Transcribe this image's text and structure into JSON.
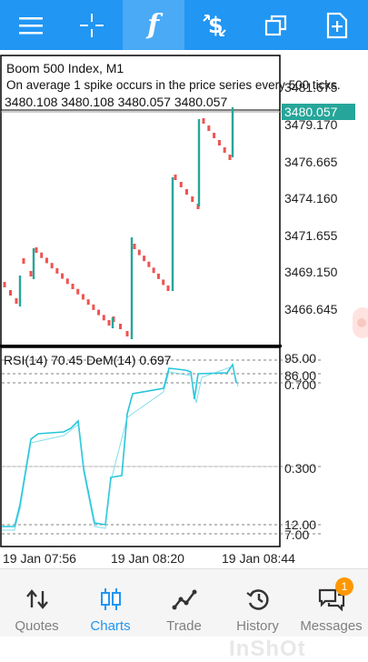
{
  "toolbar": {
    "buttons": [
      {
        "name": "menu-icon"
      },
      {
        "name": "crosshair-icon"
      },
      {
        "name": "indicators-icon",
        "glyph": "f",
        "active": true
      },
      {
        "name": "trade-dollar-icon"
      },
      {
        "name": "windows-icon"
      },
      {
        "name": "new-order-icon"
      }
    ],
    "bg_color": "#2196f3",
    "active_color": "#4aaaf5"
  },
  "chart": {
    "title": "Boom 500 Index, M1",
    "description": "On average 1 spike occurs in the price series every 500 ticks.",
    "ohlc_line": "3480.108 3480.108 3480.057 3480.057",
    "current_price": "3480.057",
    "price_labels": [
      "3481.675",
      "3479.170",
      "3476.665",
      "3474.160",
      "3471.655",
      "3469.150",
      "3466.645"
    ],
    "bull_color": "#26a69a",
    "bear_color": "#ef5350"
  },
  "indicator": {
    "label": "RSI(14) 70.45 DeM(14) 0.697",
    "level_labels": [
      "95.00",
      "86.00",
      "0.700",
      "0.300",
      "12.00",
      "7.00"
    ],
    "line_color": "#26c6da"
  },
  "time_axis": {
    "labels": [
      "19 Jan 07:56",
      "19 Jan 08:20",
      "19 Jan 08:44"
    ]
  },
  "bottom_nav": {
    "items": [
      {
        "label": "Quotes",
        "icon": "quotes-arrows-icon"
      },
      {
        "label": "Charts",
        "icon": "charts-candles-icon",
        "active": true
      },
      {
        "label": "Trade",
        "icon": "trade-line-icon"
      },
      {
        "label": "History",
        "icon": "history-clock-icon"
      },
      {
        "label": "Messages",
        "icon": "messages-chat-icon",
        "badge": "1"
      }
    ]
  },
  "watermark": "InShOt"
}
